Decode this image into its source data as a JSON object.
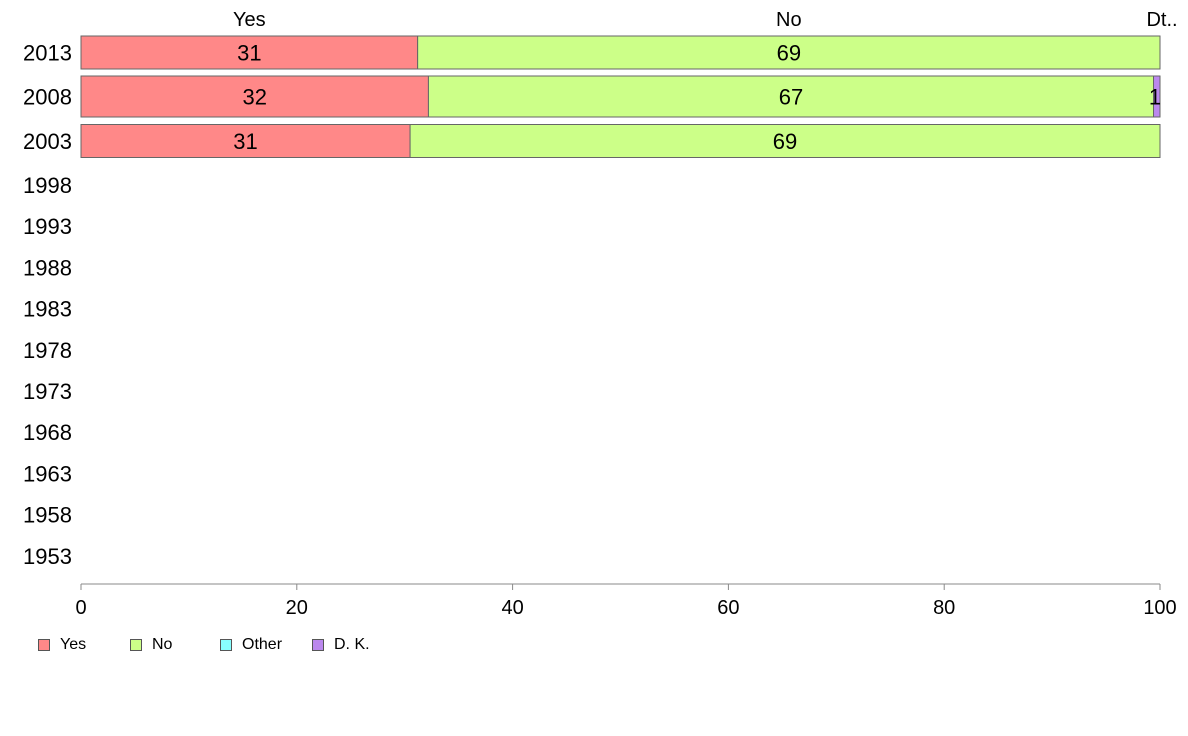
{
  "chart_data": {
    "type": "bar",
    "orientation": "horizontal",
    "stacked": true,
    "categories": [
      "2013",
      "2008",
      "2003",
      "1998",
      "1993",
      "1988",
      "1983",
      "1978",
      "1973",
      "1968",
      "1963",
      "1958",
      "1953"
    ],
    "series": [
      {
        "name": "Yes",
        "color": "#ff8888",
        "values": [
          31.2,
          32.2,
          30.5,
          null,
          null,
          null,
          null,
          null,
          null,
          null,
          null,
          null,
          null
        ],
        "labels": [
          "31",
          "32",
          "31",
          "",
          "",
          "",
          "",
          "",
          "",
          "",
          "",
          "",
          ""
        ]
      },
      {
        "name": "No",
        "color": "#ccff88",
        "values": [
          68.8,
          67.2,
          69.5,
          null,
          null,
          null,
          null,
          null,
          null,
          null,
          null,
          null,
          null
        ],
        "labels": [
          "69",
          "67",
          "69",
          "",
          "",
          "",
          "",
          "",
          "",
          "",
          "",
          "",
          ""
        ]
      },
      {
        "name": "Other",
        "color": "#88ffff",
        "values": [
          0,
          0,
          0,
          null,
          null,
          null,
          null,
          null,
          null,
          null,
          null,
          null,
          null
        ],
        "labels": [
          "",
          "",
          "",
          "",
          "",
          "",
          "",
          "",
          "",
          "",
          "",
          "",
          ""
        ]
      },
      {
        "name": "D. K.",
        "color": "#bb88ee",
        "values": [
          0,
          0.6,
          0,
          null,
          null,
          null,
          null,
          null,
          null,
          null,
          null,
          null,
          null
        ],
        "labels": [
          "",
          "1",
          "",
          "",
          "",
          "",
          "",
          "",
          "",
          "",
          "",
          "",
          ""
        ]
      }
    ],
    "top_labels": [
      "Yes",
      "No",
      "Dt.."
    ],
    "xlim": [
      0,
      100
    ],
    "xticks": [
      0,
      20,
      40,
      60,
      80,
      100
    ],
    "grid": false,
    "legend_position": "bottom-left"
  },
  "legend": {
    "items": [
      {
        "label": "Yes",
        "color": "#ff8888"
      },
      {
        "label": "No",
        "color": "#ccff88"
      },
      {
        "label": "Other",
        "color": "#88ffff"
      },
      {
        "label": "D. K.",
        "color": "#bb88ee"
      }
    ]
  }
}
